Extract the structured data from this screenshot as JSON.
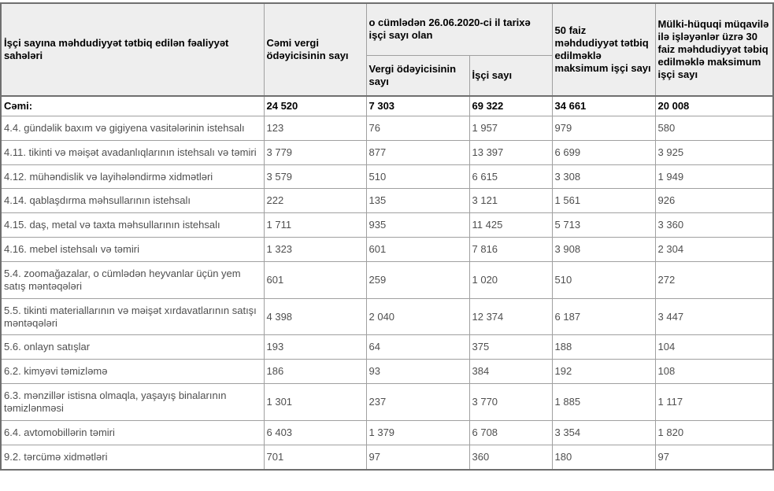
{
  "table": {
    "header": {
      "col_activity": "İşçi sayına məhdudiyyət tətbiq edilən fəaliyyət sahələri",
      "col_total_taxpayers": "Cəmi vergi ödəyicisinin sayı",
      "col_group_asof": "o cümlədən 26.06.2020-ci il tarixə işçi sayı olan",
      "col_taxpayers_count": "Vergi ödəyicisinin sayı",
      "col_worker_count": "İşçi sayı",
      "col_max_50": "50 faiz məhdudiyyət tətbiq edilməklə maksimum işçi sayı",
      "col_max_30": "Mülki-hüquqi müqavilə ilə işləyənlər üzrə 30 faiz məhdudiyyət təbiq edilməklə maksimum işçi sayı"
    },
    "total_row": {
      "label": "Cəmi:",
      "values": [
        "24 520",
        "7 303",
        "69 322",
        "34 661",
        "20 008"
      ]
    },
    "rows": [
      {
        "label": "4.4. gündəlik baxım və gigiyena vasitələrinin istehsalı",
        "values": [
          "123",
          "76",
          "1 957",
          "979",
          "580"
        ]
      },
      {
        "label": "4.11. tikinti və məişət avadanlıqlarının istehsalı və təmiri",
        "values": [
          "3 779",
          "877",
          "13 397",
          "6 699",
          "3 925"
        ]
      },
      {
        "label": "4.12. mühəndislik və layihələndirmə xidmətləri",
        "values": [
          "3 579",
          "510",
          "6 615",
          "3 308",
          "1 949"
        ]
      },
      {
        "label": "4.14. qablaşdırma məhsullarının istehsalı",
        "values": [
          "222",
          "135",
          "3 121",
          "1 561",
          "926"
        ]
      },
      {
        "label": "4.15. daş, metal və taxta məhsullarının istehsalı",
        "values": [
          "1 711",
          "935",
          "11 425",
          "5 713",
          "3 360"
        ]
      },
      {
        "label": "4.16. mebel istehsalı və təmiri",
        "values": [
          "1 323",
          "601",
          "7 816",
          "3 908",
          "2 304"
        ]
      },
      {
        "label": "5.4. zoomağazalar, o cümlədən heyvanlar üçün yem satış məntəqələri",
        "values": [
          "601",
          "259",
          "1 020",
          "510",
          "272"
        ]
      },
      {
        "label": "5.5. tikinti materiallarının və məişət xırdavatlarının satışı məntəqələri",
        "values": [
          "4 398",
          "2 040",
          "12 374",
          "6 187",
          "3 447"
        ]
      },
      {
        "label": "5.6. onlayn satışlar",
        "values": [
          "193",
          "64",
          "375",
          "188",
          "104"
        ]
      },
      {
        "label": "6.2. kimyəvi təmizləmə",
        "values": [
          "186",
          "93",
          "384",
          "192",
          "108"
        ]
      },
      {
        "label": "6.3. mənzillər istisna olmaqla, yaşayış binalarının təmizlənməsi",
        "values": [
          "1 301",
          "237",
          "3 770",
          "1 885",
          "1 117"
        ]
      },
      {
        "label": "6.4. avtomobillərin təmiri",
        "values": [
          "6 403",
          "1 379",
          "6 708",
          "3 354",
          "1 820"
        ]
      },
      {
        "label": "9.2. tərcümə xidmətləri",
        "values": [
          "701",
          "97",
          "360",
          "180",
          "97"
        ]
      }
    ],
    "colors": {
      "header_bg": "#eeeeee",
      "inner_border": "#a0a0a0",
      "outer_border": "#6f6f6f",
      "body_text": "#4f4f4f",
      "header_text": "#000000"
    }
  }
}
